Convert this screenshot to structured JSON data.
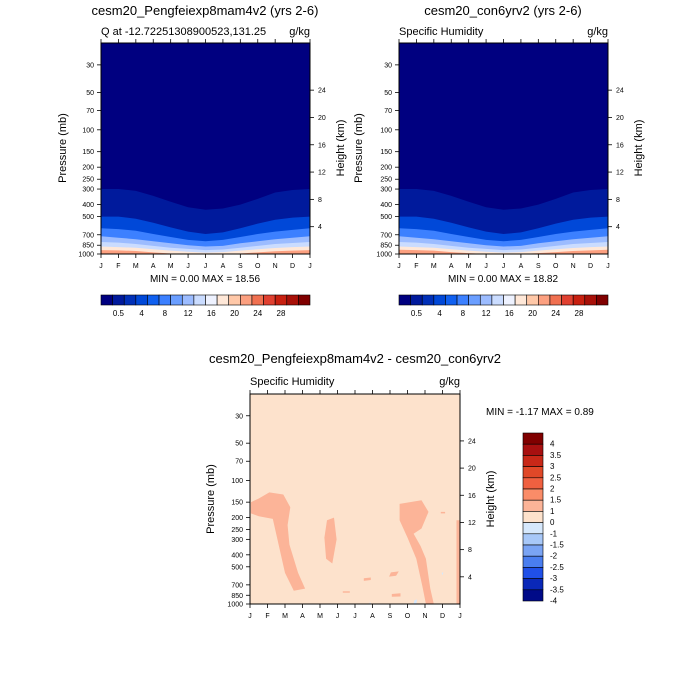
{
  "chart_data": [
    {
      "type": "heatmap",
      "title": "cesm20_Pengfeiexp8mam4v2 (yrs 2-6)",
      "subtitle_left": "Q at -12.72251308900523,131.25",
      "subtitle_right": "g/kg",
      "ylabel": "Pressure (mb)",
      "ylabel_right": "Height (km)",
      "x_ticks": [
        "J",
        "F",
        "M",
        "A",
        "M",
        "J",
        "J",
        "A",
        "S",
        "O",
        "N",
        "D",
        "J"
      ],
      "y_ticks": [
        "30",
        "50",
        "70",
        "100",
        "150",
        "200",
        "250",
        "300",
        "400",
        "500",
        "700",
        "850",
        "1000"
      ],
      "y_ticks_right": [
        "24",
        "20",
        "16",
        "12",
        "8",
        "4"
      ],
      "stats": "MIN =   0.00 MAX =  18.56",
      "colorbar_labels": [
        "0.5",
        "4",
        "8",
        "12",
        "16",
        "20",
        "24",
        "28"
      ],
      "boundaries": [
        {
          "level": 0.5,
          "p": [
            300,
            300,
            310,
            340,
            380,
            420,
            440,
            430,
            400,
            360,
            320,
            305,
            300
          ]
        },
        {
          "level": 4,
          "p": [
            500,
            500,
            520,
            560,
            610,
            660,
            690,
            670,
            620,
            570,
            530,
            510,
            500
          ]
        },
        {
          "level": 8,
          "p": [
            620,
            630,
            650,
            690,
            730,
            770,
            790,
            770,
            730,
            690,
            660,
            640,
            620
          ]
        },
        {
          "level": 12,
          "p": [
            720,
            740,
            760,
            790,
            820,
            850,
            870,
            860,
            820,
            790,
            760,
            740,
            720
          ]
        },
        {
          "level": 14,
          "p": [
            800,
            810,
            830,
            860,
            890,
            910,
            930,
            920,
            890,
            860,
            830,
            815,
            800
          ]
        },
        {
          "level": 16,
          "p": [
            870,
            880,
            890,
            915,
            940,
            960,
            975,
            965,
            940,
            915,
            895,
            880,
            870
          ]
        },
        {
          "level": 18,
          "p": [
            930,
            935,
            945,
            970,
            990,
            1000,
            1000,
            1000,
            990,
            970,
            950,
            940,
            930
          ]
        }
      ]
    },
    {
      "type": "heatmap",
      "title": "cesm20_con6yrv2 (yrs 2-6)",
      "subtitle_left": "Specific Humidity",
      "subtitle_right": "g/kg",
      "ylabel": "Pressure (mb)",
      "ylabel_right": "Height (km)",
      "x_ticks": [
        "J",
        "F",
        "M",
        "A",
        "M",
        "J",
        "J",
        "A",
        "S",
        "O",
        "N",
        "D",
        "J"
      ],
      "y_ticks": [
        "30",
        "50",
        "70",
        "100",
        "150",
        "200",
        "250",
        "300",
        "400",
        "500",
        "700",
        "850",
        "1000"
      ],
      "y_ticks_right": [
        "24",
        "20",
        "16",
        "12",
        "8",
        "4"
      ],
      "stats": "MIN =   0.00 MAX =  18.82",
      "colorbar_labels": [
        "0.5",
        "4",
        "8",
        "12",
        "16",
        "20",
        "24",
        "28"
      ],
      "boundaries": [
        {
          "level": 0.5,
          "p": [
            300,
            300,
            310,
            340,
            380,
            420,
            440,
            430,
            400,
            360,
            320,
            305,
            300
          ]
        },
        {
          "level": 4,
          "p": [
            500,
            500,
            520,
            560,
            610,
            660,
            690,
            670,
            620,
            570,
            530,
            510,
            500
          ]
        },
        {
          "level": 8,
          "p": [
            620,
            630,
            650,
            690,
            730,
            770,
            790,
            770,
            730,
            690,
            660,
            640,
            620
          ]
        },
        {
          "level": 12,
          "p": [
            720,
            740,
            760,
            790,
            820,
            850,
            870,
            860,
            820,
            790,
            760,
            740,
            720
          ]
        },
        {
          "level": 14,
          "p": [
            800,
            810,
            830,
            860,
            890,
            910,
            930,
            920,
            890,
            860,
            830,
            815,
            800
          ]
        },
        {
          "level": 16,
          "p": [
            870,
            880,
            890,
            915,
            940,
            960,
            975,
            965,
            940,
            915,
            895,
            880,
            870
          ]
        },
        {
          "level": 18,
          "p": [
            925,
            930,
            940,
            965,
            985,
            1000,
            1000,
            1000,
            985,
            965,
            945,
            935,
            925
          ]
        }
      ]
    },
    {
      "type": "heatmap",
      "title": "cesm20_Pengfeiexp8mam4v2 - cesm20_con6yrv2",
      "subtitle_left": "Specific Humidity",
      "subtitle_right": "g/kg",
      "ylabel": "Pressure (mb)",
      "ylabel_right": "Height (km)",
      "x_ticks": [
        "J",
        "F",
        "M",
        "A",
        "M",
        "J",
        "J",
        "A",
        "S",
        "O",
        "N",
        "D",
        "J"
      ],
      "y_ticks": [
        "30",
        "50",
        "70",
        "100",
        "150",
        "200",
        "250",
        "300",
        "400",
        "500",
        "700",
        "850",
        "1000"
      ],
      "y_ticks_right": [
        "24",
        "20",
        "16",
        "12",
        "8",
        "4"
      ],
      "stats": "MIN =  -1.17 MAX =   0.89",
      "colorbar_labels": [
        "4",
        "3.5",
        "3",
        "2.5",
        "2",
        "1.5",
        "1",
        "0",
        "-1",
        "-1.5",
        "-2",
        "-2.5",
        "-3",
        "-3.5",
        "-4"
      ],
      "background_value": -0.5,
      "positive_regions": [
        {
          "value": 0.5,
          "points": [
            [
              0.05,
              150
            ],
            [
              0.5,
              140
            ],
            [
              1.1,
              125
            ],
            [
              1.9,
              130
            ],
            [
              2.3,
              165
            ],
            [
              2.15,
              230
            ],
            [
              2.25,
              330
            ],
            [
              2.75,
              560
            ],
            [
              3.15,
              750
            ],
            [
              2.5,
              780
            ],
            [
              2.0,
              560
            ],
            [
              1.3,
              205
            ],
            [
              0.5,
              195
            ],
            [
              0.05,
              185
            ]
          ]
        },
        {
          "value": 0.5,
          "points": [
            [
              4.4,
              210
            ],
            [
              4.8,
              200
            ],
            [
              4.95,
              300
            ],
            [
              4.7,
              470
            ],
            [
              4.35,
              430
            ],
            [
              4.25,
              290
            ]
          ]
        },
        {
          "value": 0.5,
          "points": [
            [
              6.5,
              620
            ],
            [
              6.9,
              610
            ],
            [
              6.9,
              640
            ],
            [
              6.5,
              650
            ]
          ]
        },
        {
          "value": 0.5,
          "points": [
            [
              5.3,
              790
            ],
            [
              5.7,
              790
            ],
            [
              5.7,
              810
            ],
            [
              5.3,
              810
            ]
          ]
        },
        {
          "value": 0.5,
          "points": [
            [
              8.05,
              555
            ],
            [
              8.5,
              545
            ],
            [
              8.35,
              590
            ],
            [
              7.95,
              600
            ]
          ]
        },
        {
          "value": 0.5,
          "points": [
            [
              8.1,
              830
            ],
            [
              8.6,
              820
            ],
            [
              8.6,
              870
            ],
            [
              8.1,
              875
            ]
          ]
        },
        {
          "value": 0.5,
          "points": [
            [
              8.55,
              155
            ],
            [
              9.8,
              145
            ],
            [
              10.2,
              180
            ],
            [
              9.8,
              245
            ],
            [
              9.35,
              270
            ],
            [
              9.75,
              340
            ],
            [
              10.05,
              430
            ],
            [
              10.3,
              750
            ],
            [
              10.5,
              1000
            ],
            [
              10.05,
              1000
            ],
            [
              9.85,
              720
            ],
            [
              9.5,
              430
            ],
            [
              9.0,
              290
            ],
            [
              8.55,
              210
            ]
          ]
        },
        {
          "value": 0.5,
          "points": [
            [
              10.9,
              180
            ],
            [
              11.15,
              180
            ],
            [
              11.15,
              185
            ],
            [
              10.9,
              185
            ]
          ]
        },
        {
          "value": 0.5,
          "points": [
            [
              11.8,
              210
            ],
            [
              12.0,
              210
            ],
            [
              12.0,
              1000
            ],
            [
              11.8,
              1000
            ]
          ]
        }
      ],
      "negative_spots": [
        {
          "value": -1.25,
          "points": [
            [
              9.4,
              930
            ],
            [
              9.55,
              920
            ],
            [
              9.5,
              1000
            ],
            [
              9.35,
              1000
            ]
          ]
        },
        {
          "value": -1.25,
          "points": [
            [
              10.95,
              560
            ],
            [
              11.05,
              555
            ],
            [
              11.0,
              585
            ]
          ]
        },
        {
          "value": -1.25,
          "points": [
            [
              6.8,
              980
            ],
            [
              6.9,
              975
            ],
            [
              6.88,
              1000
            ]
          ]
        }
      ]
    }
  ],
  "colors": {
    "qa_palette": [
      "#000080",
      "#001a9c",
      "#0030b8",
      "#0048d8",
      "#1060f0",
      "#3c80ff",
      "#6a9eff",
      "#9cbcff",
      "#cadcff",
      "#eef2ff",
      "#ffe8d8",
      "#ffc8a8",
      "#fca080",
      "#f07050",
      "#e04030",
      "#c82010",
      "#a81008",
      "#800000"
    ],
    "diff_palette": [
      "#800000",
      "#a81010",
      "#c82818",
      "#e04828",
      "#f06040",
      "#fa8c68",
      "#fcb498",
      "#fde2cc",
      "#d6e8fc",
      "#a8c8f8",
      "#7aa4f4",
      "#4a7ef0",
      "#2050e8",
      "#0a28b8",
      "#000a88"
    ]
  }
}
